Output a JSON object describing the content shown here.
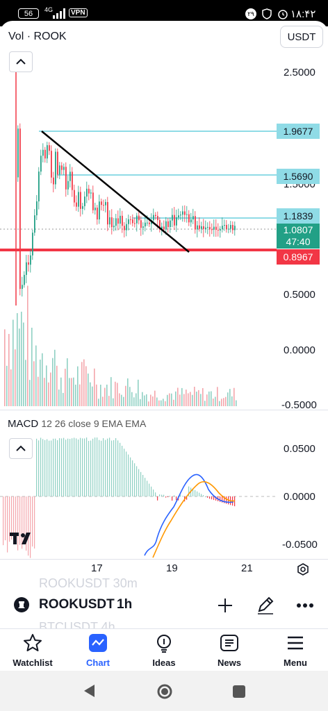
{
  "status_bar": {
    "battery": "56",
    "network": "4G",
    "vpn": "VPN",
    "time": "۱۸:۴۲",
    "badge": "۲۹"
  },
  "chart_header": {
    "title": "Vol · ROOK",
    "currency": "USDT"
  },
  "price_axis": [
    "2.5000",
    "1.5000",
    "0.5000",
    "0.0000",
    "-0.5000"
  ],
  "price_tags": {
    "line1": "1.9677",
    "line2": "1.5690",
    "line3": "1.1839",
    "last_price": "1.0807",
    "countdown": "47:40",
    "support": "0.8967"
  },
  "macd": {
    "name": "MACD",
    "params": "12 26 close 9 EMA EMA",
    "axis": [
      "0.0500",
      "0.0000",
      "-0.0500"
    ]
  },
  "time_axis": [
    "17",
    "19",
    "21"
  ],
  "symbol": {
    "name": "ROOKUSDT",
    "interval": "1h",
    "ghost_above": "ROOKUSDT 30m",
    "ghost_below": "BTCUSDT 4h"
  },
  "colors": {
    "bull": "#22a086",
    "bear": "#f23645",
    "cyan": "#8fdbe6",
    "accent": "#2962ff"
  },
  "nav": {
    "items": [
      {
        "label": "Watchlist",
        "icon": "star-icon"
      },
      {
        "label": "Chart",
        "icon": "chart-icon"
      },
      {
        "label": "Ideas",
        "icon": "lightbulb-icon"
      },
      {
        "label": "News",
        "icon": "news-icon"
      },
      {
        "label": "Menu",
        "icon": "menu-icon"
      }
    ]
  }
}
